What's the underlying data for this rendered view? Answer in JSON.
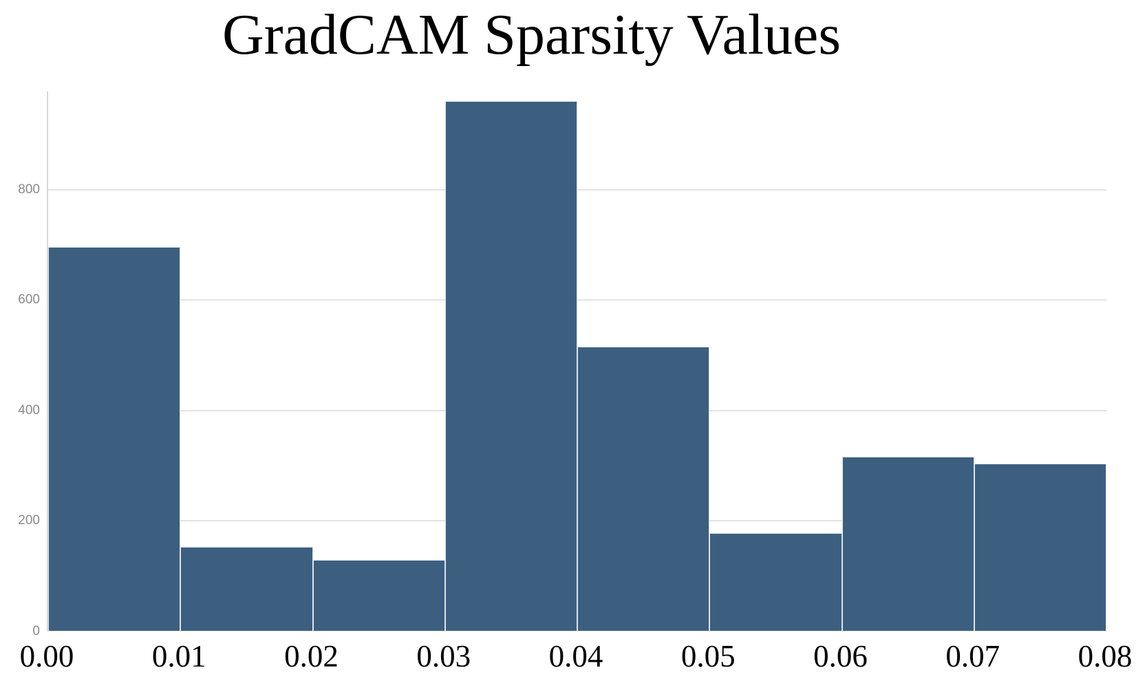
{
  "title": "GradCAM Sparsity Values",
  "chart_data": {
    "type": "bar",
    "subtype": "histogram",
    "title": "GradCAM Sparsity Values",
    "xlabel": "",
    "ylabel": "",
    "bin_edges": [
      0.0,
      0.01,
      0.02,
      0.03,
      0.04,
      0.05,
      0.06,
      0.07,
      0.08
    ],
    "x_tick_labels": [
      "0.00",
      "0.01",
      "0.02",
      "0.03",
      "0.04",
      "0.05",
      "0.06",
      "0.07",
      "0.08"
    ],
    "values": [
      697,
      153,
      130,
      960,
      516,
      178,
      317,
      304
    ],
    "y_ticks": [
      0,
      200,
      400,
      600,
      800
    ],
    "y_tick_labels": [
      "0",
      "200",
      "400",
      "600",
      "800"
    ],
    "ylim": [
      0,
      978
    ],
    "grid": "horizontal",
    "legend": "none",
    "bar_color": "#3c5f80",
    "bar_edge_color": "#dde4eb",
    "gridline_color": "#e3e3e3",
    "axis_color": "#d9d9d9",
    "y_tick_color": "#8a8a8a",
    "x_tick_color": "#000000"
  }
}
